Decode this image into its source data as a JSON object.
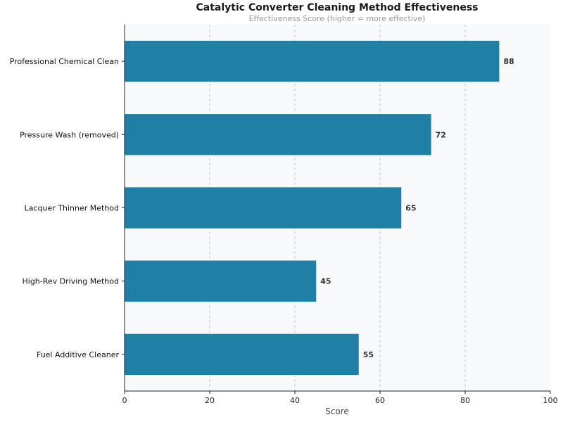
{
  "chart_data": {
    "type": "bar",
    "orientation": "horizontal",
    "title": "Catalytic Converter Cleaning Method Effectiveness",
    "subtitle": "Effectiveness Score (higher = more effective)",
    "xlabel": "Score",
    "ylabel": "",
    "xlim": [
      0,
      100
    ],
    "xticks": [
      0,
      20,
      40,
      60,
      80,
      100
    ],
    "categories": [
      "Professional Chemical Clean",
      "Pressure Wash (removed)",
      "Lacquer Thinner Method",
      "High-Rev Driving Method",
      "Fuel Additive Cleaner"
    ],
    "values": [
      88,
      72,
      65,
      45,
      55
    ],
    "grid": "x-dashed",
    "colors": {
      "bar": "#1f7fa5",
      "background": "#f8f9fa"
    }
  }
}
